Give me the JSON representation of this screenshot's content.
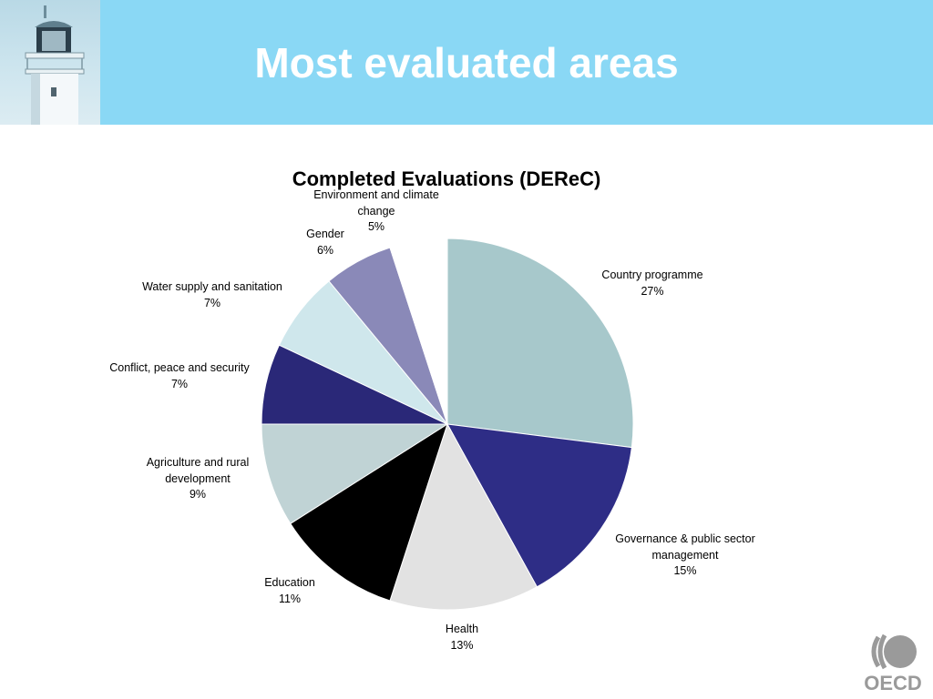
{
  "slide": {
    "title": "Most evaluated areas"
  },
  "colors": {
    "header_bg": "#8ad8f5",
    "title_text": "#ffffff"
  },
  "icons": {
    "header_image": "lighthouse-icon",
    "logo": "oecd-logo-icon"
  },
  "chart_data": {
    "type": "pie",
    "title": "Completed Evaluations (DEReC)",
    "start_angle_deg": 0,
    "direction": "clockwise",
    "slices": [
      {
        "name": "Country programme",
        "value": 27,
        "label_lines": [
          "Country programme"
        ],
        "pct": "27%",
        "color": "#a7c8cb"
      },
      {
        "name": "Governance & public sector management",
        "value": 15,
        "label_lines": [
          "Governance & public sector",
          "management"
        ],
        "pct": "15%",
        "color": "#2e2d86"
      },
      {
        "name": "Health",
        "value": 13,
        "label_lines": [
          "Health"
        ],
        "pct": "13%",
        "color": "#e2e2e2"
      },
      {
        "name": "Education",
        "value": 11,
        "label_lines": [
          "Education"
        ],
        "pct": "11%",
        "color": "#000000"
      },
      {
        "name": "Agriculture and rural development",
        "value": 9,
        "label_lines": [
          "Agriculture and rural",
          "development"
        ],
        "pct": "9%",
        "color": "#c0d3d5"
      },
      {
        "name": "Conflict, peace and security",
        "value": 7,
        "label_lines": [
          "Conflict, peace and security"
        ],
        "pct": "7%",
        "color": "#2a2878"
      },
      {
        "name": "Water supply and sanitation",
        "value": 7,
        "label_lines": [
          "Water supply and sanitation"
        ],
        "pct": "7%",
        "color": "#cfe7ec"
      },
      {
        "name": "Gender",
        "value": 6,
        "label_lines": [
          "Gender"
        ],
        "pct": "6%",
        "color": "#8a89b8"
      },
      {
        "name": "Environment and climate change",
        "value": 5,
        "label_lines": [
          "Environment and climate",
          "change"
        ],
        "pct": "5%",
        "color": "#ffffff"
      }
    ]
  }
}
